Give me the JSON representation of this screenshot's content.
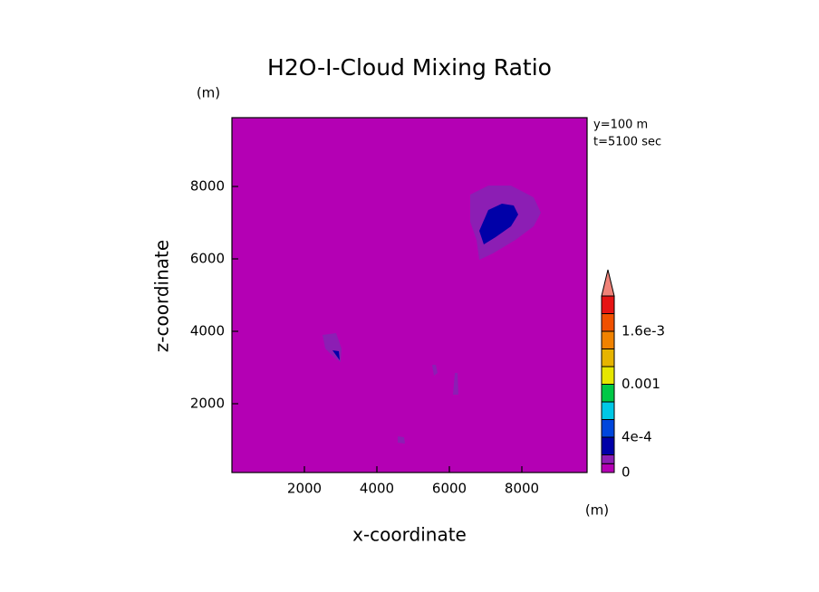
{
  "chart_data": {
    "type": "contour",
    "title": "H2O-I-Cloud Mixing Ratio",
    "x_label": "x-coordinate",
    "y_label": "z-coordinate",
    "x_unit": "(m)",
    "y_unit": "(m)",
    "annotations": [
      "y=100 m",
      "t=5100 sec"
    ],
    "xlim": [
      0,
      9800
    ],
    "ylim": [
      100,
      9900
    ],
    "xticks": [
      2000,
      4000,
      6000,
      8000
    ],
    "yticks": [
      2000,
      4000,
      6000,
      8000
    ],
    "colorbar": {
      "levels": [
        0,
        0.0001,
        0.0002,
        0.0004,
        0.0006,
        0.0008,
        0.001,
        0.0012,
        0.0014,
        0.0016,
        0.0018,
        0.002
      ],
      "colors": [
        "#b400b4",
        "#8c1eb4",
        "#0000a8",
        "#0046dc",
        "#00c8e6",
        "#00c846",
        "#e6e600",
        "#e6b400",
        "#f08200",
        "#f05000",
        "#e61414"
      ],
      "extend_color": "#f08278",
      "ticks": [
        0,
        {
          "value": 0.0004,
          "label": "4e-4"
        },
        0.001,
        {
          "value": 0.0016,
          "label": "1.6e-3"
        }
      ]
    },
    "regions": [
      {
        "level": 1,
        "x": [
          6575,
          7075,
          7700,
          8325,
          8525,
          8325,
          7825,
          7200,
          6825,
          6750,
          6575
        ],
        "y": [
          7775,
          8025,
          8025,
          7700,
          7275,
          6900,
          6525,
          6150,
          5975,
          6525,
          7025
        ]
      },
      {
        "level": 2,
        "x": [
          6825,
          7075,
          7450,
          7775,
          7900,
          7700,
          7275,
          6950
        ],
        "y": [
          6775,
          7350,
          7525,
          7475,
          7225,
          6900,
          6600,
          6400
        ]
      },
      {
        "level": 1,
        "x": [
          2500,
          2875,
          3025,
          3000,
          2825,
          2575
        ],
        "y": [
          3900,
          3950,
          3525,
          3150,
          3275,
          3525
        ]
      },
      {
        "level": 2,
        "x": [
          2775,
          2950,
          2975
        ],
        "y": [
          3475,
          3450,
          3200
        ]
      },
      {
        "level": 1,
        "x": [
          5525,
          5625,
          5675,
          5575
        ],
        "y": [
          3075,
          3075,
          2850,
          2775
        ]
      },
      {
        "level": 1,
        "x": [
          6150,
          6225,
          6250,
          6100
        ],
        "y": [
          2850,
          2850,
          2250,
          2250
        ]
      },
      {
        "level": 1,
        "x": [
          4575,
          4750,
          4775,
          4575
        ],
        "y": [
          1100,
          1075,
          900,
          925
        ]
      }
    ]
  }
}
